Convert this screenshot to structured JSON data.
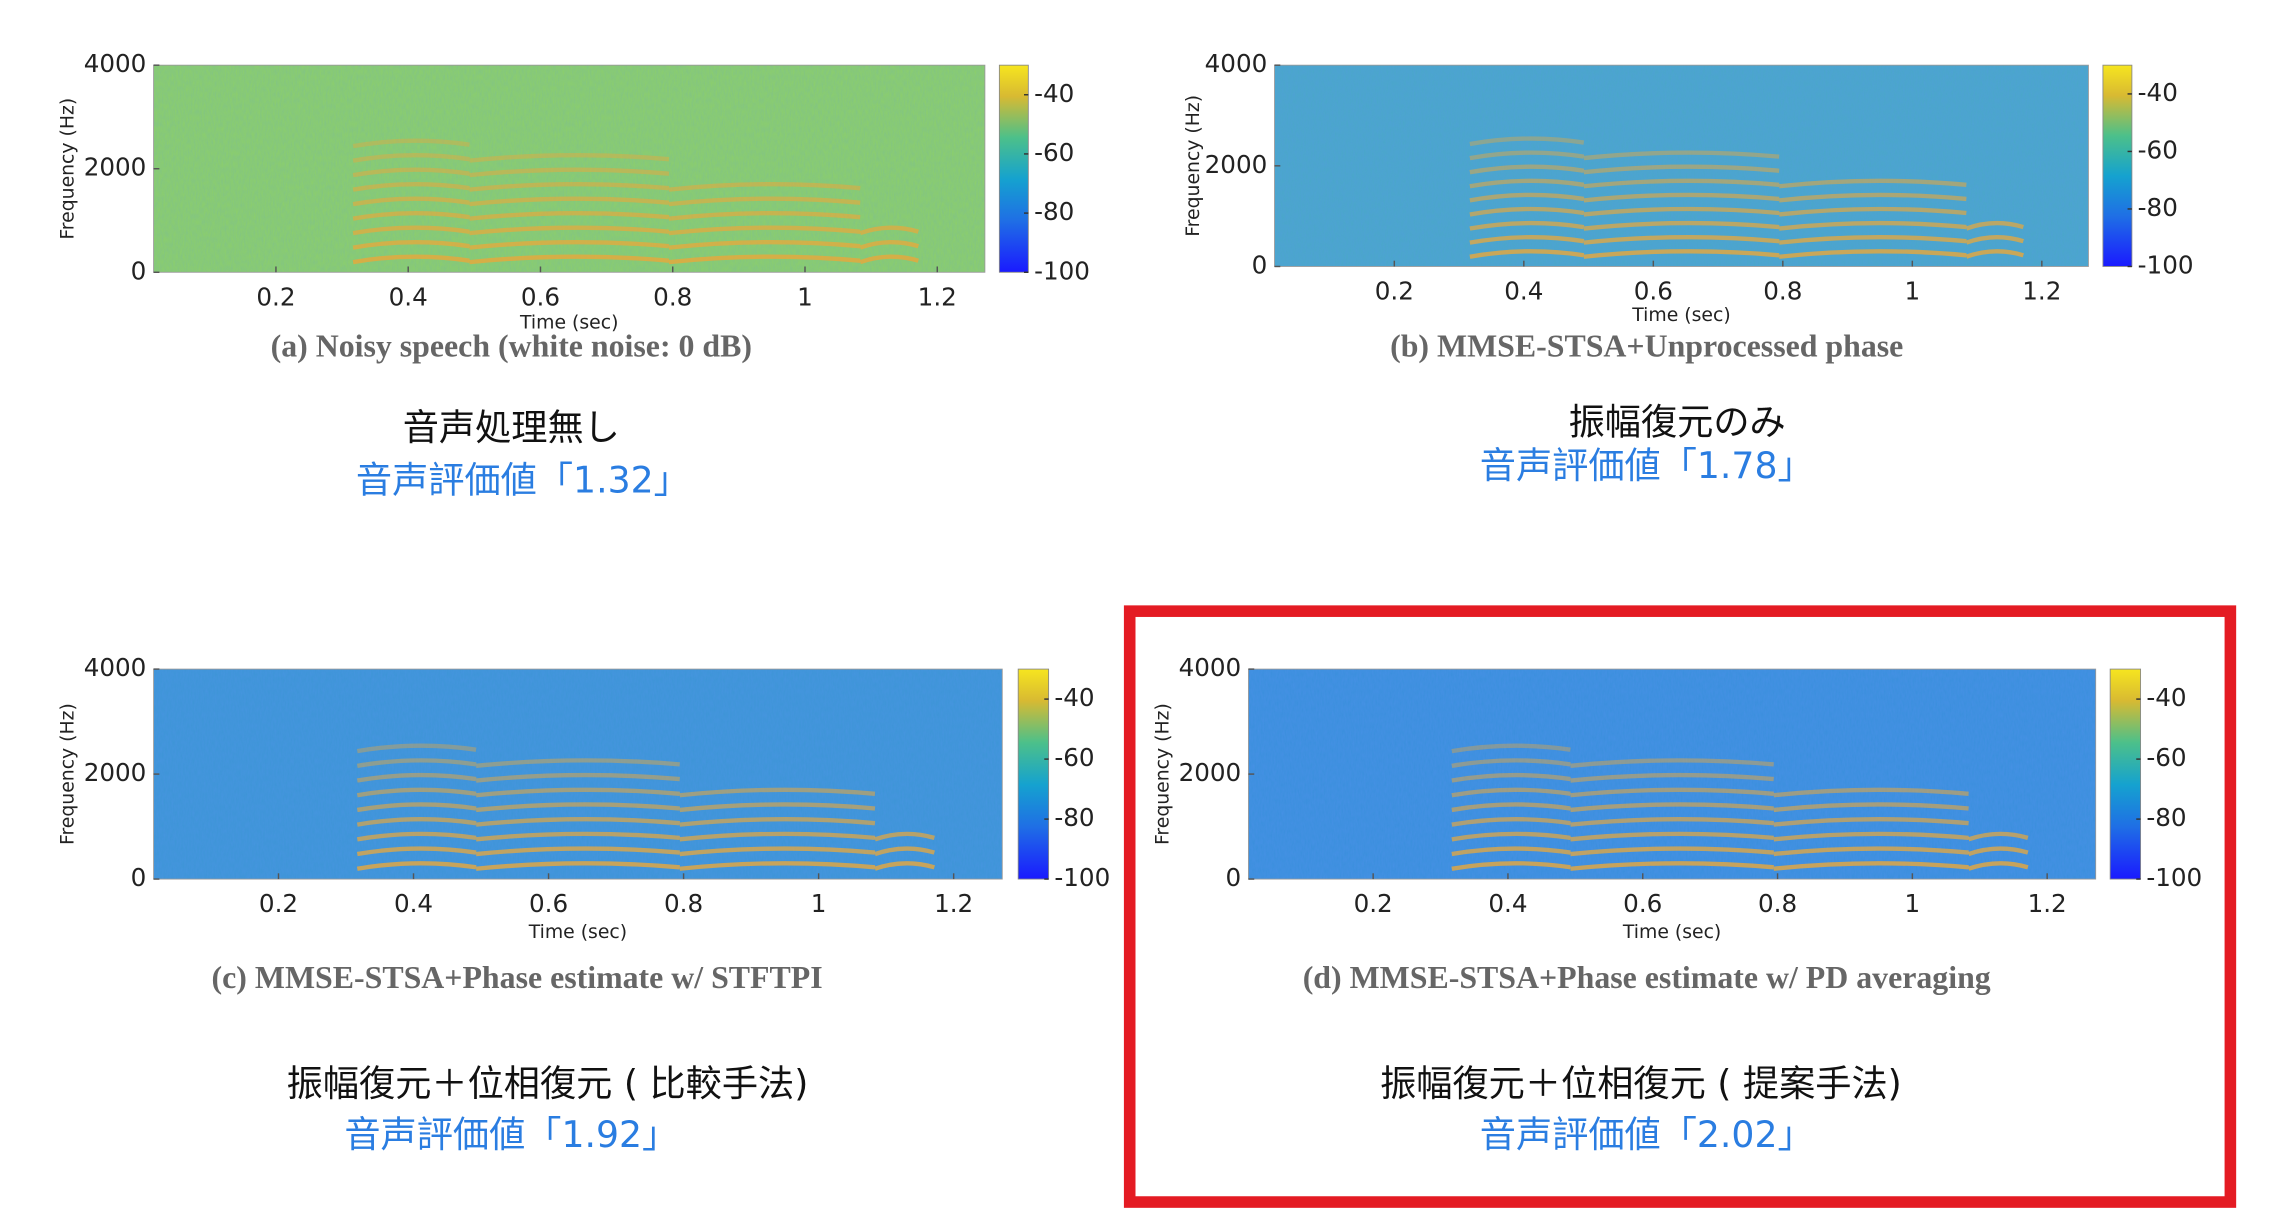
{
  "chart_data": [
    {
      "type": "spectrogram",
      "caption": "(a) Noisy speech (white noise: 0 dB)",
      "label": "音声処理無し",
      "score": "音声評価値「1.32」",
      "x_label": "Time (sec)",
      "y_label": "Frequency (Hz)",
      "xlim": [
        0.015,
        1.272
      ],
      "ylim": [
        0,
        4000
      ],
      "xticks": [
        0.2,
        0.4,
        0.6,
        0.8,
        1,
        1.2
      ],
      "yticks": [
        0,
        2000,
        4000
      ],
      "clim": [
        -100,
        -30
      ],
      "cticks": [
        -40,
        -60,
        -80,
        -100
      ]
    },
    {
      "type": "spectrogram",
      "caption": "(b) MMSE-STSA+Unprocessed phase",
      "label": "振幅復元のみ",
      "score": "音声評価値「1.78」",
      "x_label": "Time (sec)",
      "y_label": "Frequency (Hz)",
      "xlim": [
        0.015,
        1.272
      ],
      "ylim": [
        0,
        4000
      ],
      "xticks": [
        0.2,
        0.4,
        0.6,
        0.8,
        1,
        1.2
      ],
      "yticks": [
        0,
        2000,
        4000
      ],
      "clim": [
        -100,
        -30
      ],
      "cticks": [
        -40,
        -60,
        -80,
        -100
      ]
    },
    {
      "type": "spectrogram",
      "caption": "(c) MMSE-STSA+Phase estimate w/ STFTPI",
      "label": "振幅復元＋位相復元 ( 比較手法)",
      "score": "音声評価値「1.92」",
      "x_label": "Time (sec)",
      "y_label": "Frequency (Hz)",
      "xlim": [
        0.015,
        1.272
      ],
      "ylim": [
        0,
        4000
      ],
      "xticks": [
        0.2,
        0.4,
        0.6,
        0.8,
        1,
        1.2
      ],
      "yticks": [
        0,
        2000,
        4000
      ],
      "clim": [
        -100,
        -30
      ],
      "cticks": [
        -40,
        -60,
        -80,
        -100
      ]
    },
    {
      "type": "spectrogram",
      "caption": "(d) MMSE-STSA+Phase estimate w/ PD averaging",
      "label": "振幅復元＋位相復元 ( 提案手法)",
      "score": "音声評価値「2.02」",
      "x_label": "Time (sec)",
      "y_label": "Frequency (Hz)",
      "xlim": [
        0.015,
        1.272
      ],
      "ylim": [
        0,
        4000
      ],
      "xticks": [
        0.2,
        0.4,
        0.6,
        0.8,
        1,
        1.2
      ],
      "yticks": [
        0,
        2000,
        4000
      ],
      "clim": [
        -100,
        -30
      ],
      "cticks": [
        -40,
        -60,
        -80,
        -100
      ]
    }
  ]
}
